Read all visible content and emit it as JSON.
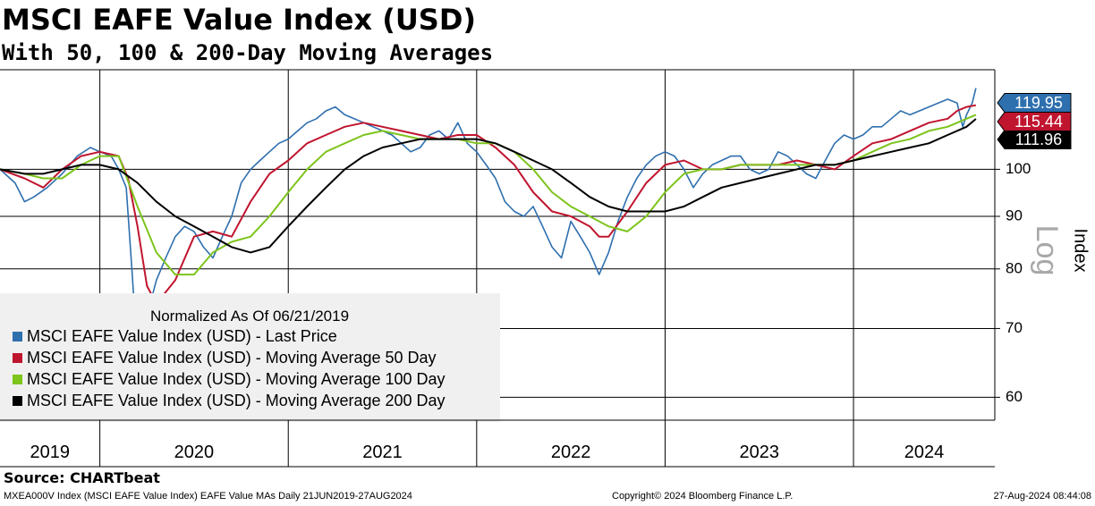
{
  "title": "MSCI EAFE Value Index (USD)",
  "subtitle": "With 50, 100 & 200-Day Moving Averages",
  "source": "Source: CHARTbeat",
  "footer": {
    "left": "MXEA000V Index (MSCI EAFE Value Index) EAFE Value MAs  Daily 21JUN2019-27AUG2024",
    "middle": "Copyright© 2024 Bloomberg Finance L.P.",
    "right": "27-Aug-2024 08:44:08"
  },
  "chart_data": {
    "type": "line",
    "scale": "log",
    "ylabel": "Index",
    "scale_label": "Log",
    "ylim": [
      57,
      125
    ],
    "yticks": [
      60,
      70,
      80,
      90,
      100
    ],
    "xlim": [
      2019.47,
      2024.75
    ],
    "year_labels": [
      "2019",
      "2020",
      "2021",
      "2022",
      "2023",
      "2024"
    ],
    "grid": true,
    "legend_title": "Normalized As Of 06/21/2019",
    "legend_position": "bottom-left",
    "last_values": [
      "119.95",
      "115.44",
      "111.96"
    ],
    "series": [
      {
        "name": "MSCI EAFE Value Index (USD) - Last Price",
        "color": "#2e6fae",
        "x": [
          2019.47,
          2019.55,
          2019.6,
          2019.65,
          2019.72,
          2019.8,
          2019.88,
          2019.95,
          2020.0,
          2020.06,
          2020.1,
          2020.14,
          2020.17,
          2020.2,
          2020.22,
          2020.25,
          2020.3,
          2020.35,
          2020.4,
          2020.45,
          2020.5,
          2020.55,
          2020.6,
          2020.65,
          2020.7,
          2020.75,
          2020.8,
          2020.85,
          2020.9,
          2020.95,
          2021.0,
          2021.05,
          2021.1,
          2021.15,
          2021.2,
          2021.25,
          2021.3,
          2021.35,
          2021.4,
          2021.45,
          2021.5,
          2021.55,
          2021.6,
          2021.65,
          2021.7,
          2021.75,
          2021.8,
          2021.85,
          2021.9,
          2021.95,
          2022.0,
          2022.05,
          2022.1,
          2022.15,
          2022.2,
          2022.25,
          2022.3,
          2022.35,
          2022.4,
          2022.45,
          2022.5,
          2022.55,
          2022.6,
          2022.65,
          2022.7,
          2022.75,
          2022.8,
          2022.85,
          2022.9,
          2022.95,
          2023.0,
          2023.05,
          2023.1,
          2023.15,
          2023.2,
          2023.25,
          2023.3,
          2023.35,
          2023.4,
          2023.45,
          2023.5,
          2023.55,
          2023.6,
          2023.65,
          2023.7,
          2023.75,
          2023.8,
          2023.85,
          2023.9,
          2023.95,
          2024.0,
          2024.05,
          2024.1,
          2024.15,
          2024.2,
          2024.25,
          2024.3,
          2024.35,
          2024.4,
          2024.45,
          2024.5,
          2024.55,
          2024.58,
          2024.6,
          2024.63,
          2024.65
        ],
        "y": [
          100,
          97,
          93,
          94,
          96,
          99,
          103,
          105,
          104,
          103,
          100,
          96,
          80,
          66,
          68,
          72,
          78,
          82,
          86,
          88,
          87,
          84,
          82,
          86,
          90,
          97,
          100,
          102,
          104,
          106,
          107,
          109,
          111,
          112,
          114,
          115,
          113,
          112,
          111,
          110,
          109,
          108,
          106,
          104,
          105,
          108,
          109,
          107,
          111,
          106,
          104,
          101,
          98,
          93,
          91,
          90,
          92,
          88,
          84,
          82,
          89,
          86,
          83,
          79,
          83,
          89,
          94,
          98,
          101,
          103,
          104,
          103,
          100,
          96,
          99,
          101,
          102,
          103,
          103,
          100,
          99,
          100,
          104,
          103,
          101,
          99,
          98,
          102,
          106,
          108,
          107,
          108,
          110,
          110,
          112,
          114,
          113,
          114,
          115,
          116,
          117,
          116,
          110,
          113,
          116,
          119.95
        ]
      },
      {
        "name": "MSCI EAFE Value Index (USD) - Moving Average 50 Day",
        "color": "#c0152f",
        "x": [
          2019.47,
          2019.6,
          2019.7,
          2019.8,
          2019.9,
          2020.0,
          2020.1,
          2020.15,
          2020.2,
          2020.25,
          2020.3,
          2020.4,
          2020.5,
          2020.6,
          2020.7,
          2020.8,
          2020.9,
          2021.0,
          2021.1,
          2021.2,
          2021.3,
          2021.4,
          2021.5,
          2021.6,
          2021.7,
          2021.8,
          2021.9,
          2022.0,
          2022.1,
          2022.2,
          2022.3,
          2022.4,
          2022.5,
          2022.6,
          2022.65,
          2022.7,
          2022.8,
          2022.9,
          2023.0,
          2023.1,
          2023.2,
          2023.3,
          2023.4,
          2023.5,
          2023.6,
          2023.7,
          2023.8,
          2023.9,
          2024.0,
          2024.1,
          2024.2,
          2024.3,
          2024.4,
          2024.5,
          2024.55,
          2024.6,
          2024.65
        ],
        "y": [
          100,
          98,
          96,
          100,
          103,
          104,
          103,
          98,
          88,
          77,
          74,
          78,
          86,
          87,
          86,
          93,
          99,
          102,
          106,
          108,
          110,
          111,
          110,
          109,
          108,
          107,
          108,
          108,
          105,
          101,
          95,
          91,
          90,
          88,
          86,
          86,
          91,
          97,
          101,
          102,
          100,
          100,
          101,
          101,
          101,
          102,
          101,
          100,
          103,
          106,
          107,
          109,
          111,
          112,
          114,
          115,
          115.44
        ]
      },
      {
        "name": "MSCI EAFE Value Index (USD) - Moving Average 100 Day",
        "color": "#7dc41c",
        "x": [
          2019.47,
          2019.6,
          2019.7,
          2019.8,
          2019.9,
          2020.0,
          2020.1,
          2020.2,
          2020.3,
          2020.4,
          2020.5,
          2020.6,
          2020.7,
          2020.8,
          2020.9,
          2021.0,
          2021.1,
          2021.2,
          2021.3,
          2021.4,
          2021.5,
          2021.6,
          2021.7,
          2021.8,
          2021.9,
          2022.0,
          2022.1,
          2022.2,
          2022.3,
          2022.4,
          2022.5,
          2022.6,
          2022.7,
          2022.8,
          2022.9,
          2023.0,
          2023.1,
          2023.2,
          2023.3,
          2023.4,
          2023.5,
          2023.6,
          2023.7,
          2023.8,
          2023.9,
          2024.0,
          2024.1,
          2024.2,
          2024.3,
          2024.4,
          2024.5,
          2024.6,
          2024.65
        ],
        "y": [
          100,
          99,
          98,
          98,
          101,
          103,
          103,
          92,
          83,
          79,
          79,
          83,
          85,
          86,
          90,
          95,
          100,
          104,
          106,
          108,
          109,
          108,
          107,
          107,
          107,
          106,
          106,
          104,
          100,
          95,
          92,
          90,
          88,
          87,
          90,
          95,
          99,
          100,
          100,
          101,
          101,
          101,
          101,
          101,
          101,
          102,
          104,
          106,
          107,
          109,
          110,
          112,
          113
        ]
      },
      {
        "name": "MSCI EAFE Value Index (USD) - Moving Average 200 Day",
        "color": "#000000",
        "x": [
          2019.47,
          2019.6,
          2019.7,
          2019.8,
          2019.9,
          2020.0,
          2020.1,
          2020.2,
          2020.3,
          2020.4,
          2020.5,
          2020.6,
          2020.7,
          2020.8,
          2020.9,
          2021.0,
          2021.1,
          2021.2,
          2021.3,
          2021.4,
          2021.5,
          2021.6,
          2021.7,
          2021.8,
          2021.9,
          2022.0,
          2022.1,
          2022.2,
          2022.3,
          2022.4,
          2022.5,
          2022.6,
          2022.7,
          2022.8,
          2022.9,
          2023.0,
          2023.1,
          2023.2,
          2023.3,
          2023.4,
          2023.5,
          2023.6,
          2023.7,
          2023.8,
          2023.9,
          2024.0,
          2024.1,
          2024.2,
          2024.3,
          2024.4,
          2024.5,
          2024.6,
          2024.65
        ],
        "y": [
          100,
          99,
          99,
          100,
          101,
          101,
          100,
          97,
          93,
          90,
          88,
          86,
          84,
          83,
          84,
          88,
          92,
          96,
          100,
          103,
          105,
          106,
          107,
          107,
          107,
          107,
          106,
          104,
          102,
          100,
          97,
          94,
          92,
          91,
          91,
          91,
          92,
          94,
          96,
          97,
          98,
          99,
          100,
          101,
          101,
          102,
          103,
          104,
          105,
          106,
          108,
          110,
          111.96
        ]
      }
    ]
  }
}
